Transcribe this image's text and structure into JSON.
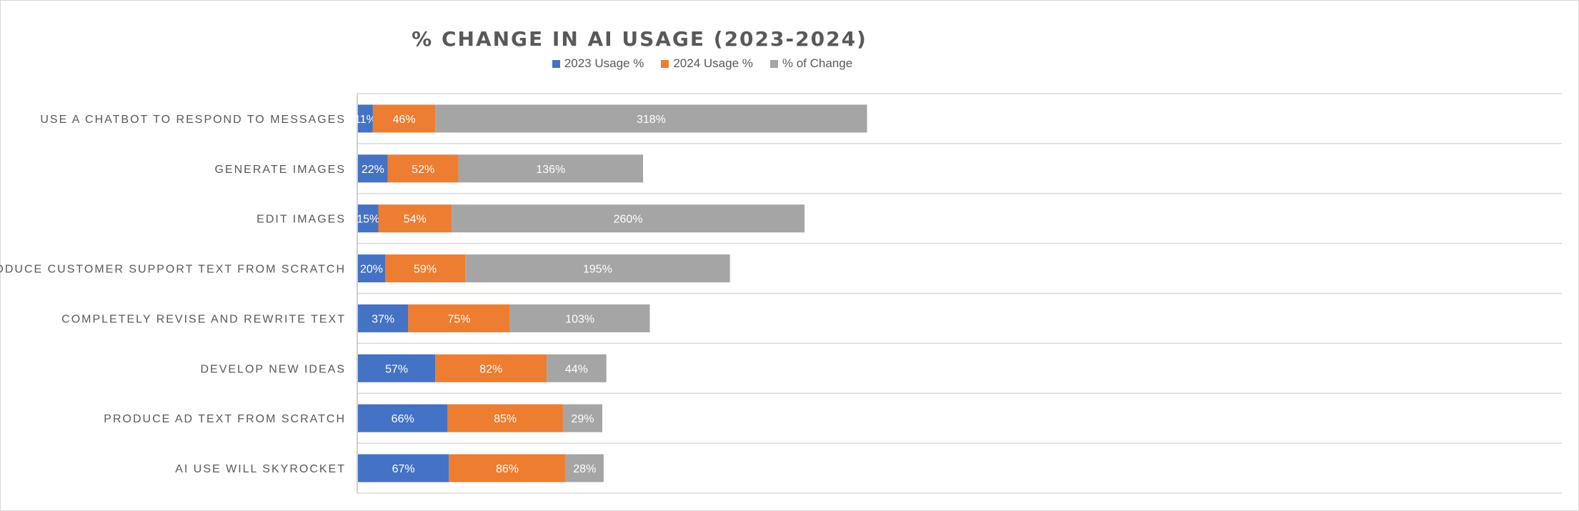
{
  "chart_data": {
    "type": "bar",
    "orientation": "horizontal",
    "stacked": true,
    "title": "% CHANGE IN AI USAGE (2023-2024)",
    "legend_position": "top",
    "grid": "horizontal separators",
    "categories": [
      "USE A CHATBOT TO RESPOND TO MESSAGES",
      "GENERATE IMAGES",
      "EDIT IMAGES",
      "PRODUCE CUSTOMER SUPPORT TEXT FROM SCRATCH",
      "COMPLETELY REVISE AND REWRITE TEXT",
      "DEVELOP NEW IDEAS",
      "PRODUCE AD TEXT FROM SCRATCH",
      "AI USE WILL SKYROCKET"
    ],
    "series": [
      {
        "name": "2023 Usage %",
        "color": "#4472c4",
        "values": [
          11,
          22,
          15,
          20,
          37,
          57,
          66,
          67
        ]
      },
      {
        "name": "2024 Usage %",
        "color": "#ed7d31",
        "values": [
          46,
          52,
          54,
          59,
          75,
          82,
          85,
          86
        ]
      },
      {
        "name": "% of Change",
        "color": "#a5a5a5",
        "values": [
          318,
          136,
          260,
          195,
          103,
          44,
          29,
          28
        ]
      }
    ],
    "xlim": [
      0,
      400
    ]
  }
}
